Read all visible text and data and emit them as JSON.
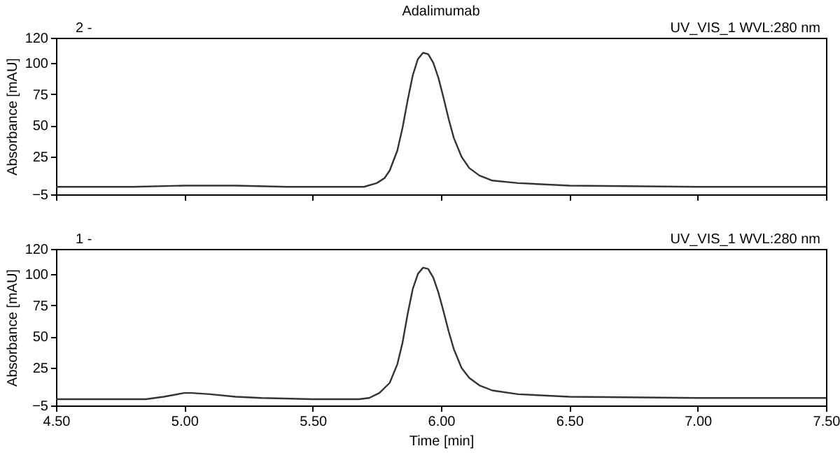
{
  "chart_data": [
    {
      "type": "line",
      "title": "Adalimumab",
      "ylabel": "Absorbance [mAU]",
      "annotations": [
        "2 -",
        "UV_VIS_1 WVL:280 nm"
      ],
      "tick_labels": "y",
      "grid": false,
      "line_style": "solid",
      "marker": "none",
      "x": [
        4.5,
        4.8,
        5.0,
        5.2,
        5.4,
        5.6,
        5.7,
        5.75,
        5.78,
        5.8,
        5.83,
        5.85,
        5.87,
        5.89,
        5.91,
        5.93,
        5.95,
        5.97,
        5.99,
        6.01,
        6.03,
        6.05,
        6.08,
        6.11,
        6.15,
        6.2,
        6.3,
        6.5,
        7.0,
        7.5
      ],
      "series": [
        {
          "color": "#333333",
          "values": [
            1,
            1,
            2,
            2,
            1,
            1,
            1,
            4,
            8,
            14,
            30,
            48,
            70,
            90,
            103,
            108,
            107,
            100,
            88,
            72,
            55,
            40,
            25,
            16,
            10,
            6,
            4,
            2,
            1,
            1
          ]
        }
      ],
      "xlim": [
        4.5,
        7.5
      ],
      "xticks": [
        {
          "value": 4.5,
          "label": null
        },
        {
          "value": 5,
          "label": null
        },
        {
          "value": 5.5,
          "label": null
        },
        {
          "value": 6,
          "label": null
        },
        {
          "value": 6.5,
          "label": null
        },
        {
          "value": 7,
          "label": null
        },
        {
          "value": 7.5,
          "label": null
        }
      ],
      "ylim": [
        -5,
        120
      ],
      "yticks": [
        -5,
        25,
        50,
        75,
        100,
        120
      ]
    },
    {
      "type": "line",
      "xlabel": "Time [min]",
      "ylabel": "Absorbance [mAU]",
      "annotations": [
        "1 -",
        "UV_VIS_1 WVL:280 nm"
      ],
      "grid": false,
      "line_style": "solid",
      "marker": "none",
      "x": [
        4.5,
        4.85,
        4.92,
        5.0,
        5.03,
        5.1,
        5.2,
        5.3,
        5.5,
        5.68,
        5.72,
        5.76,
        5.8,
        5.83,
        5.85,
        5.87,
        5.89,
        5.91,
        5.93,
        5.95,
        5.97,
        5.99,
        6.01,
        6.03,
        6.05,
        6.08,
        6.11,
        6.15,
        6.2,
        6.3,
        6.5,
        7.0,
        7.5
      ],
      "series": [
        {
          "color": "#333333",
          "values": [
            0,
            0,
            2,
            5,
            5,
            4,
            2,
            1,
            0,
            0,
            1,
            5,
            13,
            28,
            45,
            68,
            88,
            100,
            105,
            104,
            97,
            85,
            70,
            54,
            40,
            25,
            17,
            11,
            7,
            4,
            2,
            1,
            1
          ]
        }
      ],
      "xlim": [
        4.5,
        7.5
      ],
      "xticks": [
        {
          "value": 4.5,
          "label": "4.50"
        },
        {
          "value": 5,
          "label": "5.00"
        },
        {
          "value": 5.5,
          "label": "5.50"
        },
        {
          "value": 6,
          "label": "6.00"
        },
        {
          "value": 6.5,
          "label": "6.50"
        },
        {
          "value": 7,
          "label": "7.00"
        },
        {
          "value": 7.5,
          "label": "7.50"
        }
      ],
      "ylim": [
        -5,
        120
      ],
      "yticks": [
        -5,
        25,
        50,
        75,
        100,
        120
      ]
    }
  ]
}
